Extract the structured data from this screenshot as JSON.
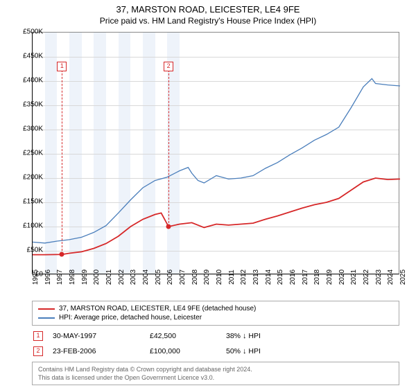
{
  "title": "37, MARSTON ROAD, LEICESTER, LE4 9FE",
  "subtitle": "Price paid vs. HM Land Registry's House Price Index (HPI)",
  "chart": {
    "type": "line",
    "x_range": [
      1995,
      2025
    ],
    "y_range": [
      0,
      500000
    ],
    "y_ticks": [
      0,
      50000,
      100000,
      150000,
      200000,
      250000,
      300000,
      350000,
      400000,
      450000,
      500000
    ],
    "y_tick_labels": [
      "£0",
      "£50K",
      "£100K",
      "£150K",
      "£200K",
      "£250K",
      "£300K",
      "£350K",
      "£400K",
      "£450K",
      "£500K"
    ],
    "x_ticks": [
      1995,
      1996,
      1997,
      1998,
      1999,
      2000,
      2001,
      2002,
      2003,
      2004,
      2005,
      2006,
      2007,
      2008,
      2009,
      2010,
      2011,
      2012,
      2013,
      2014,
      2015,
      2016,
      2017,
      2018,
      2019,
      2020,
      2021,
      2022,
      2023,
      2024,
      2025
    ],
    "shaded_bands": [
      [
        1996,
        1997
      ],
      [
        1998,
        1999
      ],
      [
        2000,
        2001
      ],
      [
        2002,
        2003
      ],
      [
        2004,
        2005
      ],
      [
        2006,
        2007
      ]
    ],
    "background_color": "#ffffff",
    "grid_color": "#d8d8d8",
    "series": [
      {
        "name": "37, MARSTON ROAD, LEICESTER, LE4 9FE (detached house)",
        "color": "#d62728",
        "width": 1.8,
        "data": [
          [
            1995,
            42000
          ],
          [
            1996,
            42000
          ],
          [
            1997.4,
            42500
          ],
          [
            1998,
            45000
          ],
          [
            1999,
            48000
          ],
          [
            2000,
            55000
          ],
          [
            2001,
            65000
          ],
          [
            2002,
            80000
          ],
          [
            2003,
            100000
          ],
          [
            2004,
            115000
          ],
          [
            2005,
            125000
          ],
          [
            2005.5,
            128000
          ],
          [
            2006.1,
            100000
          ],
          [
            2007,
            105000
          ],
          [
            2008,
            108000
          ],
          [
            2009,
            98000
          ],
          [
            2010,
            105000
          ],
          [
            2011,
            103000
          ],
          [
            2012,
            105000
          ],
          [
            2013,
            107000
          ],
          [
            2014,
            115000
          ],
          [
            2015,
            122000
          ],
          [
            2016,
            130000
          ],
          [
            2017,
            138000
          ],
          [
            2018,
            145000
          ],
          [
            2019,
            150000
          ],
          [
            2020,
            158000
          ],
          [
            2021,
            175000
          ],
          [
            2022,
            192000
          ],
          [
            2023,
            200000
          ],
          [
            2024,
            197000
          ],
          [
            2025,
            198000
          ]
        ]
      },
      {
        "name": "HPI: Average price, detached house, Leicester",
        "color": "#4a7ebb",
        "width": 1.3,
        "data": [
          [
            1995,
            68000
          ],
          [
            1996,
            66000
          ],
          [
            1997,
            70000
          ],
          [
            1998,
            73000
          ],
          [
            1999,
            78000
          ],
          [
            2000,
            88000
          ],
          [
            2001,
            102000
          ],
          [
            2002,
            128000
          ],
          [
            2003,
            155000
          ],
          [
            2004,
            180000
          ],
          [
            2005,
            195000
          ],
          [
            2006,
            202000
          ],
          [
            2007,
            215000
          ],
          [
            2007.7,
            222000
          ],
          [
            2008,
            210000
          ],
          [
            2008.5,
            195000
          ],
          [
            2009,
            190000
          ],
          [
            2010,
            205000
          ],
          [
            2011,
            198000
          ],
          [
            2012,
            200000
          ],
          [
            2013,
            205000
          ],
          [
            2014,
            220000
          ],
          [
            2015,
            232000
          ],
          [
            2016,
            248000
          ],
          [
            2017,
            262000
          ],
          [
            2018,
            278000
          ],
          [
            2019,
            290000
          ],
          [
            2020,
            305000
          ],
          [
            2021,
            345000
          ],
          [
            2022,
            388000
          ],
          [
            2022.7,
            405000
          ],
          [
            2023,
            395000
          ],
          [
            2024,
            392000
          ],
          [
            2025,
            390000
          ]
        ]
      }
    ],
    "sale_markers": [
      {
        "label": "1",
        "x": 1997.4,
        "y": 42500,
        "box_y": 430000
      },
      {
        "label": "2",
        "x": 2006.1,
        "y": 100000,
        "box_y": 430000
      }
    ]
  },
  "legend": {
    "items": [
      {
        "color": "#d62728",
        "label": "37, MARSTON ROAD, LEICESTER, LE4 9FE (detached house)"
      },
      {
        "color": "#4a7ebb",
        "label": "HPI: Average price, detached house, Leicester"
      }
    ]
  },
  "sales": [
    {
      "marker": "1",
      "date": "30-MAY-1997",
      "price": "£42,500",
      "pct": "38%",
      "arrow": "↓",
      "vs": "HPI"
    },
    {
      "marker": "2",
      "date": "23-FEB-2006",
      "price": "£100,000",
      "pct": "50%",
      "arrow": "↓",
      "vs": "HPI"
    }
  ],
  "footer": {
    "line1": "Contains HM Land Registry data © Crown copyright and database right 2024.",
    "line2": "This data is licensed under the Open Government Licence v3.0."
  }
}
